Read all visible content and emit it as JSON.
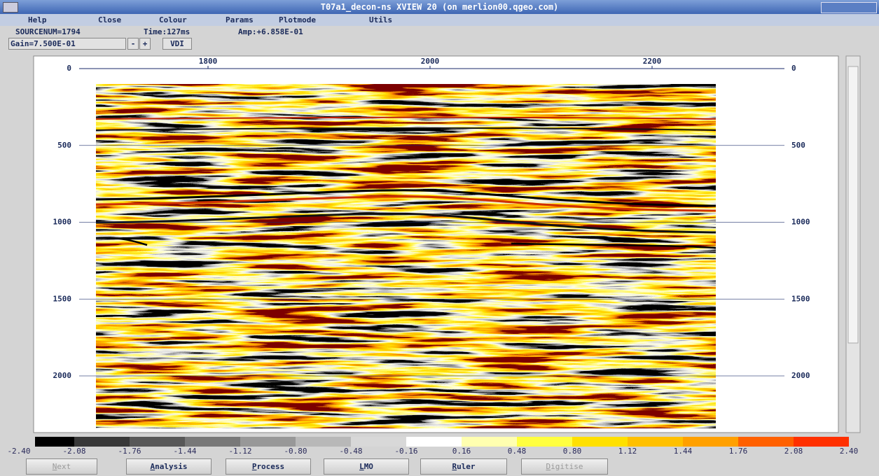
{
  "window": {
    "title": "T07a1_decon-ns XVIEW 20 (on merlion00.qgeo.com)"
  },
  "menu": [
    "Help",
    "Close",
    "Colour",
    "Params",
    "Plotmode",
    "Utils"
  ],
  "status": {
    "source": "SOURCENUM=1794",
    "time": "Time:127ms",
    "amp": "Amp:+6.858E-01"
  },
  "controls": {
    "gain": "Gain=7.500E-01",
    "minus": "-",
    "plus": "+",
    "mode": "VDI"
  },
  "plot": {
    "xticks": [
      1800,
      2000,
      2200
    ],
    "yticks": [
      0,
      500,
      1000,
      1500,
      2000
    ]
  },
  "colorbar": {
    "labels": [
      "-2.40",
      "-2.08",
      "-1.76",
      "-1.44",
      "-1.12",
      "-0.80",
      "-0.48",
      "-0.16",
      "0.16",
      "0.48",
      "0.80",
      "1.12",
      "1.44",
      "1.76",
      "2.08",
      "2.40"
    ],
    "colors": [
      "#000000",
      "#383838",
      "#585858",
      "#787878",
      "#989898",
      "#b8b8b8",
      "#d8d8d8",
      "#ffffff",
      "#ffffb0",
      "#ffff40",
      "#ffe000",
      "#ffc000",
      "#ffa000",
      "#ff6000",
      "#ff3000"
    ]
  },
  "buttons": [
    {
      "label": "Next",
      "enabled": false
    },
    {
      "label": "Analysis",
      "enabled": true
    },
    {
      "label": "Process",
      "enabled": true
    },
    {
      "label": "LMO",
      "enabled": true
    },
    {
      "label": "Ruler",
      "enabled": true
    },
    {
      "label": "Digitise",
      "enabled": false
    }
  ]
}
